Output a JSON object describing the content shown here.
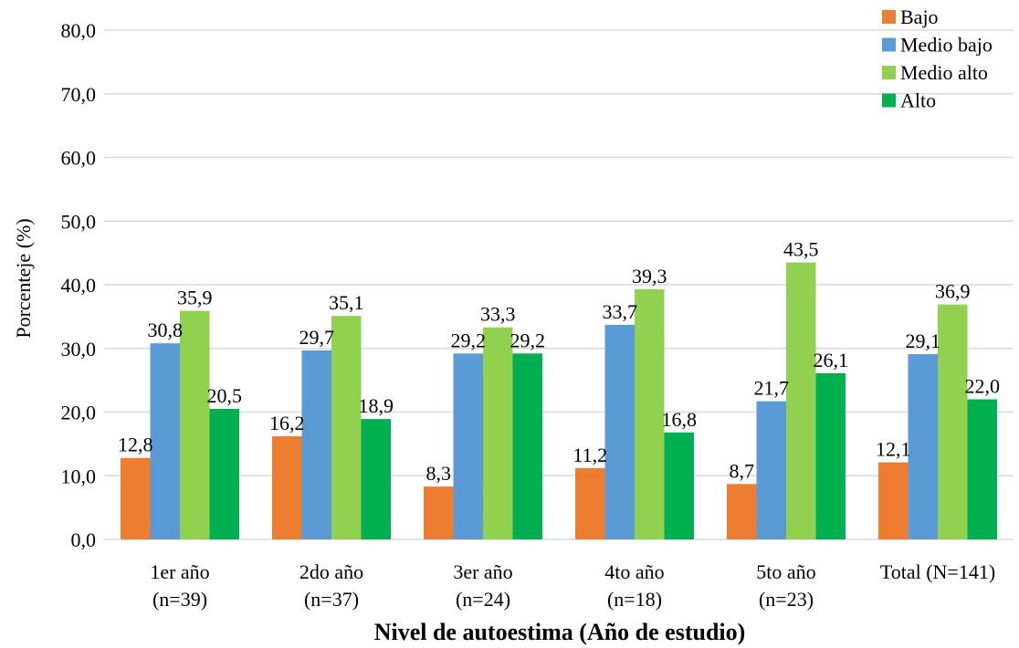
{
  "chart_data": {
    "type": "bar",
    "xlabel": "Nivel de autoestima (Año de estudio)",
    "ylabel": "Porcenteje (%)",
    "ylim": [
      0,
      80
    ],
    "yticks": [
      "0,0",
      "10,0",
      "20,0",
      "30,0",
      "40,0",
      "50,0",
      "60,0",
      "70,0",
      "80,0"
    ],
    "grid": true,
    "legend_position": "top-right",
    "categories": [
      [
        "1er año",
        "(n=39)"
      ],
      [
        "2do año",
        "(n=37)"
      ],
      [
        "3er año",
        "(n=24)"
      ],
      [
        "4to año",
        "(n=18)"
      ],
      [
        "5to año",
        "(n=23)"
      ],
      [
        "Total (N=141)"
      ]
    ],
    "series": [
      {
        "name": "Bajo",
        "color": "#ED7D31",
        "values": [
          12.8,
          16.2,
          8.3,
          11.2,
          8.7,
          12.1
        ],
        "labels": [
          "12,8",
          "16,2",
          "8,3",
          "11,2",
          "8,7",
          "12,1"
        ]
      },
      {
        "name": "Medio bajo",
        "color": "#5B9BD5",
        "values": [
          30.8,
          29.7,
          29.2,
          33.7,
          21.7,
          29.1
        ],
        "labels": [
          "30,8",
          "29,7",
          "29,2",
          "33,7",
          "21,7",
          "29,1"
        ]
      },
      {
        "name": "Medio alto",
        "color": "#92D050",
        "values": [
          35.9,
          35.1,
          33.3,
          39.3,
          43.5,
          36.9
        ],
        "labels": [
          "35,9",
          "35,1",
          "33,3",
          "39,3",
          "43,5",
          "36,9"
        ]
      },
      {
        "name": "Alto",
        "color": "#00B050",
        "values": [
          20.5,
          18.9,
          29.2,
          16.8,
          26.1,
          22.0
        ],
        "labels": [
          "20,5",
          "18,9",
          "29,2",
          "16,8",
          "26,1",
          "22,0"
        ]
      }
    ]
  }
}
